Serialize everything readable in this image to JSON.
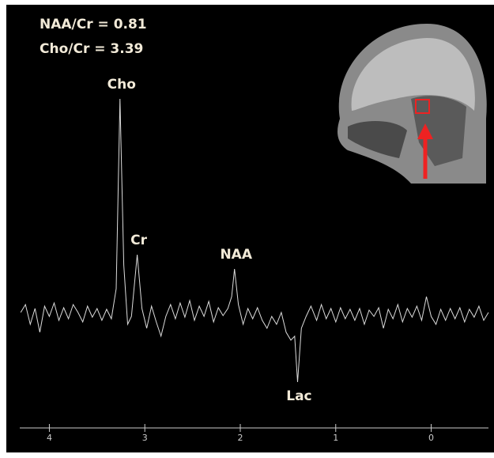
{
  "chart_data": {
    "type": "line",
    "texts": [
      "NAA/Cr = 0.81",
      "Cho/Cr = 3.39"
    ],
    "color": "#dcdcdc",
    "xlim": [
      4.31,
      -0.6
    ],
    "ylim": [
      -150,
      290
    ],
    "xticks": [
      4,
      3,
      2,
      1,
      0
    ],
    "annotations": [
      {
        "text": "Cho",
        "x": 3.26
      },
      {
        "text": "Cr",
        "x": 3.08
      },
      {
        "text": "NAA",
        "x": 2.06
      },
      {
        "text": "Lac",
        "x": 1.4
      }
    ],
    "x": [
      4.3,
      4.25,
      4.2,
      4.15,
      4.1,
      4.05,
      4.0,
      3.95,
      3.9,
      3.85,
      3.8,
      3.75,
      3.7,
      3.65,
      3.6,
      3.55,
      3.5,
      3.45,
      3.4,
      3.35,
      3.3,
      3.26,
      3.22,
      3.18,
      3.14,
      3.08,
      3.03,
      2.98,
      2.93,
      2.88,
      2.83,
      2.78,
      2.73,
      2.68,
      2.63,
      2.58,
      2.53,
      2.48,
      2.43,
      2.38,
      2.33,
      2.28,
      2.23,
      2.18,
      2.13,
      2.09,
      2.06,
      2.02,
      1.97,
      1.92,
      1.87,
      1.82,
      1.77,
      1.72,
      1.67,
      1.62,
      1.57,
      1.52,
      1.47,
      1.43,
      1.4,
      1.36,
      1.31,
      1.26,
      1.2,
      1.15,
      1.1,
      1.05,
      1.0,
      0.95,
      0.9,
      0.85,
      0.8,
      0.75,
      0.7,
      0.65,
      0.6,
      0.55,
      0.5,
      0.45,
      0.4,
      0.35,
      0.3,
      0.25,
      0.2,
      0.15,
      0.1,
      0.05,
      0.0,
      -0.05,
      -0.1,
      -0.15,
      -0.2,
      -0.25,
      -0.3,
      -0.35,
      -0.4,
      -0.45,
      -0.5,
      -0.55,
      -0.6
    ],
    "values": [
      0,
      10,
      -15,
      5,
      -25,
      8,
      -5,
      12,
      -10,
      6,
      -8,
      10,
      0,
      -12,
      8,
      -6,
      5,
      -10,
      4,
      -8,
      30,
      270,
      60,
      -15,
      -5,
      73,
      5,
      -20,
      8,
      -12,
      -30,
      -5,
      10,
      -8,
      12,
      -6,
      15,
      -10,
      8,
      -5,
      14,
      -12,
      6,
      -4,
      5,
      20,
      55,
      10,
      -15,
      5,
      -8,
      6,
      -10,
      -20,
      -5,
      -15,
      0,
      -25,
      -35,
      -30,
      -88,
      -20,
      -5,
      8,
      -10,
      10,
      -8,
      5,
      -12,
      6,
      -8,
      4,
      -10,
      5,
      -15,
      3,
      -5,
      6,
      -20,
      4,
      -8,
      10,
      -12,
      5,
      -6,
      8,
      -10,
      20,
      -5,
      -15,
      4,
      -10,
      5,
      -8,
      6,
      -12,
      4,
      -6,
      8,
      -10,
      0
    ]
  }
}
